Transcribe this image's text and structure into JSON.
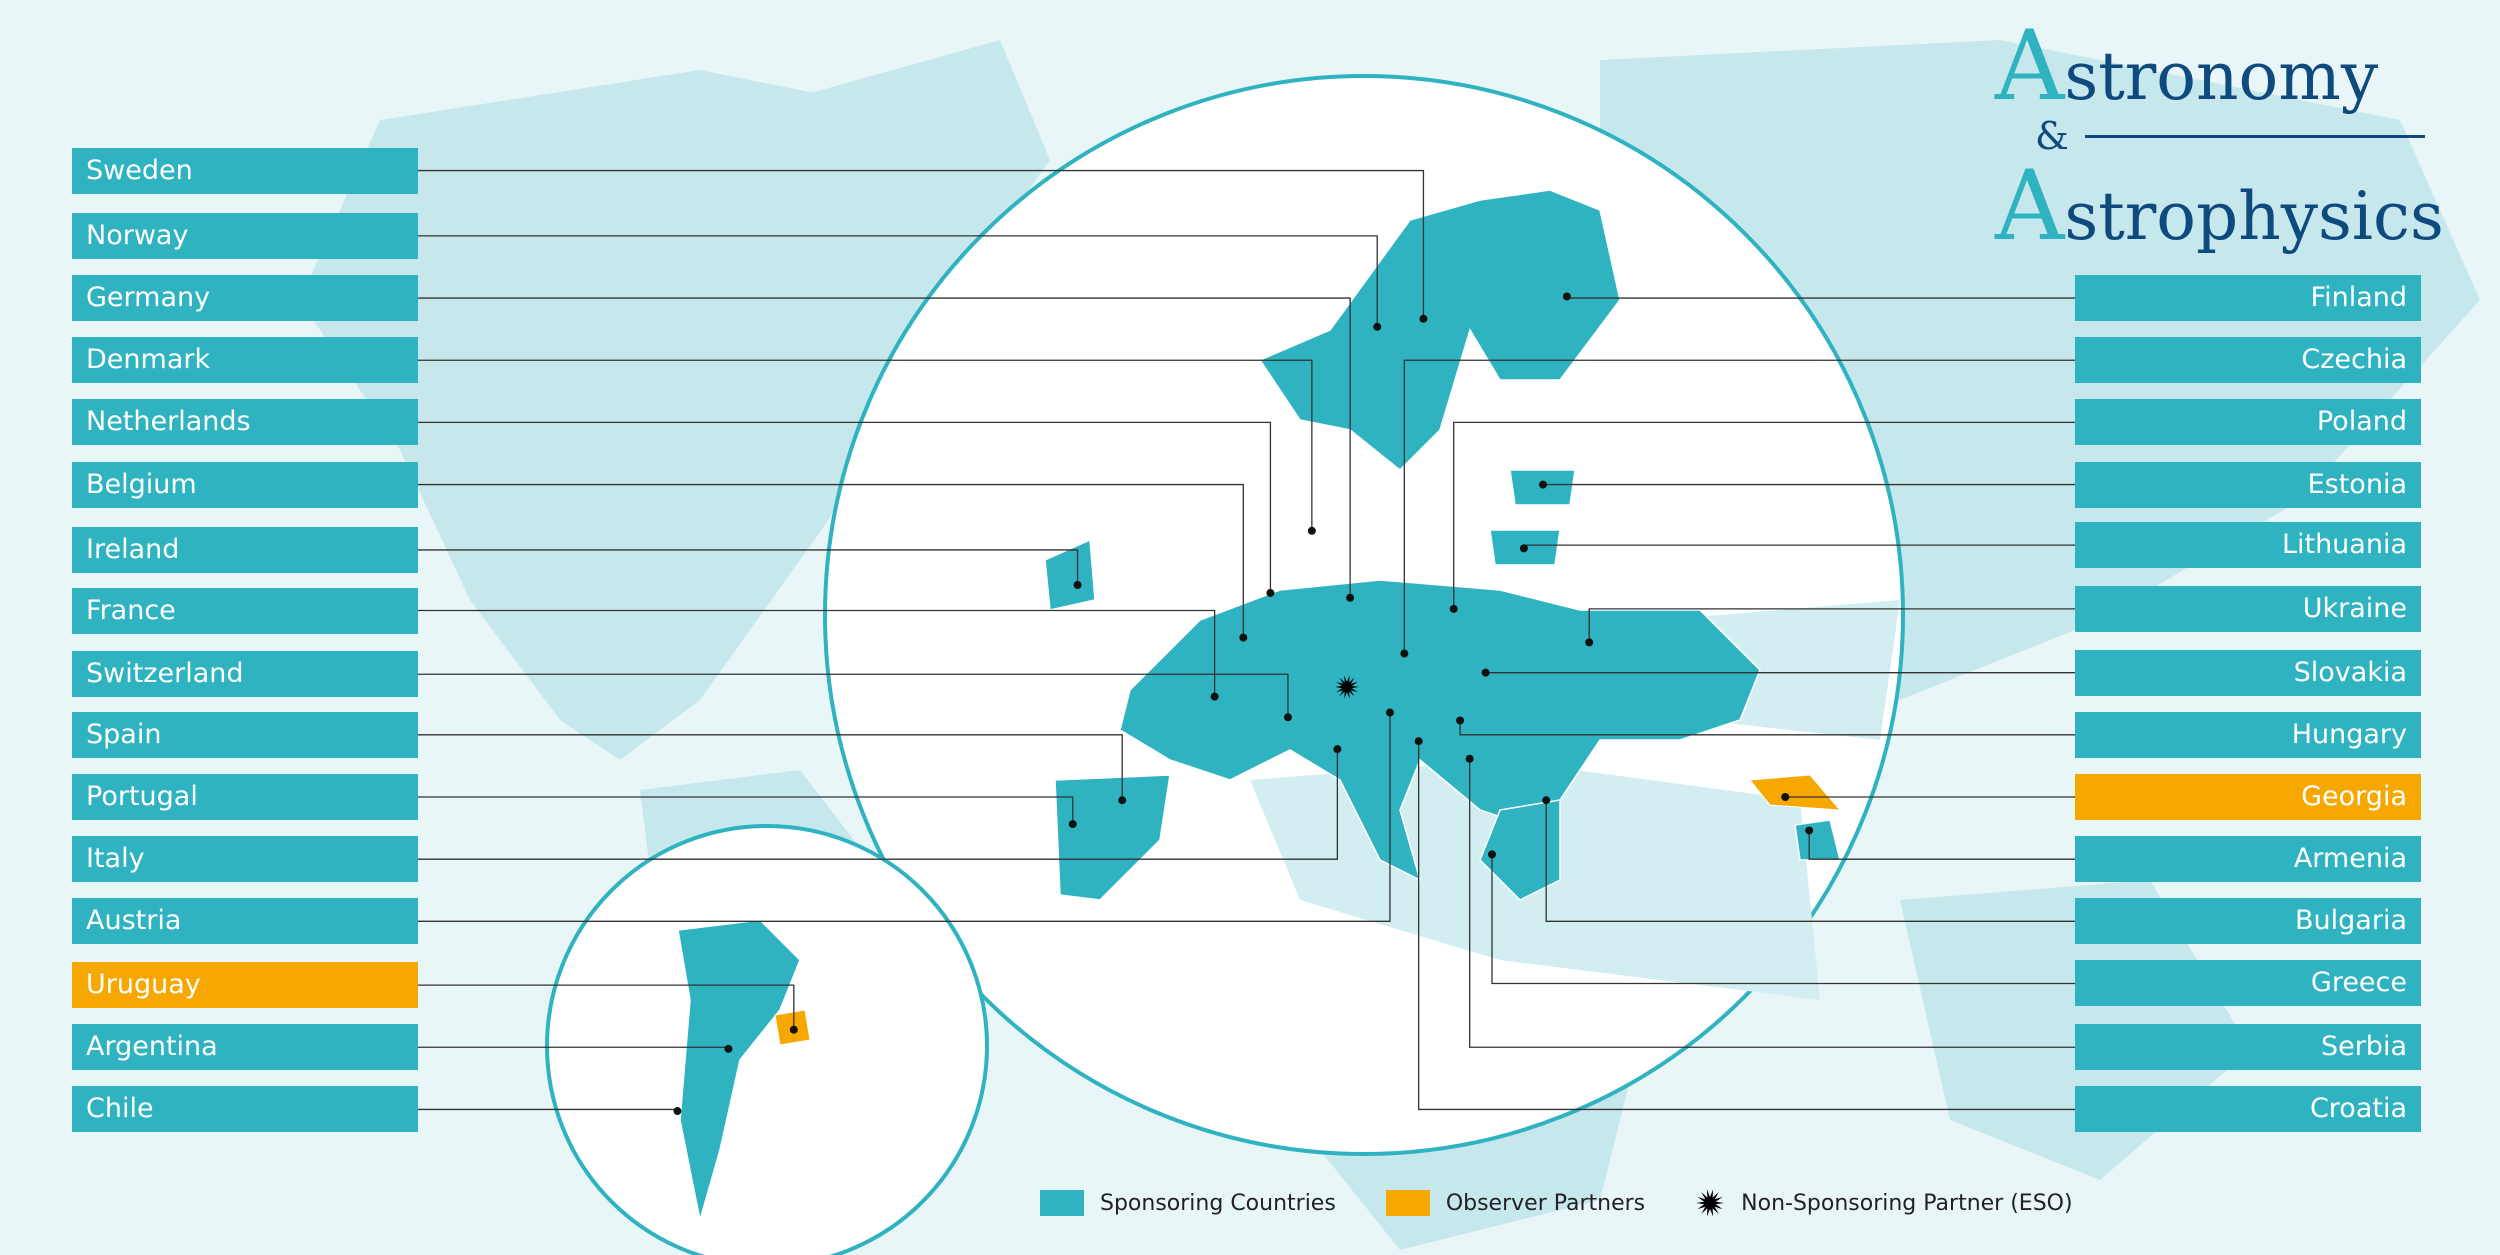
{
  "logo": {
    "line1": "Astronomy",
    "ampersand": "&",
    "line2": "Astrophysics"
  },
  "colors": {
    "sponsoring": "#2fb3c1",
    "observer": "#f6a800",
    "eso": "#000000",
    "background": "#e9f6f8",
    "land": "#c6e8ed"
  },
  "left_countries": [
    {
      "name": "Sweden",
      "type": "sponsoring"
    },
    {
      "name": "Norway",
      "type": "sponsoring"
    },
    {
      "name": "Germany",
      "type": "sponsoring"
    },
    {
      "name": "Denmark",
      "type": "sponsoring"
    },
    {
      "name": "Netherlands",
      "type": "sponsoring"
    },
    {
      "name": "Belgium",
      "type": "sponsoring"
    },
    {
      "name": "Ireland",
      "type": "sponsoring"
    },
    {
      "name": "France",
      "type": "sponsoring"
    },
    {
      "name": "Switzerland",
      "type": "sponsoring"
    },
    {
      "name": "Spain",
      "type": "sponsoring"
    },
    {
      "name": "Portugal",
      "type": "sponsoring"
    },
    {
      "name": "Italy",
      "type": "sponsoring"
    },
    {
      "name": "Austria",
      "type": "sponsoring"
    },
    {
      "name": "Uruguay",
      "type": "observer"
    },
    {
      "name": "Argentina",
      "type": "sponsoring"
    },
    {
      "name": "Chile",
      "type": "sponsoring"
    }
  ],
  "right_countries": [
    {
      "name": "Finland",
      "type": "sponsoring"
    },
    {
      "name": "Czechia",
      "type": "sponsoring"
    },
    {
      "name": "Poland",
      "type": "sponsoring"
    },
    {
      "name": "Estonia",
      "type": "sponsoring"
    },
    {
      "name": "Lithuania",
      "type": "sponsoring"
    },
    {
      "name": "Ukraine",
      "type": "sponsoring"
    },
    {
      "name": "Slovakia",
      "type": "sponsoring"
    },
    {
      "name": "Hungary",
      "type": "sponsoring"
    },
    {
      "name": "Georgia",
      "type": "observer"
    },
    {
      "name": "Armenia",
      "type": "sponsoring"
    },
    {
      "name": "Bulgaria",
      "type": "sponsoring"
    },
    {
      "name": "Greece",
      "type": "sponsoring"
    },
    {
      "name": "Serbia",
      "type": "sponsoring"
    },
    {
      "name": "Croatia",
      "type": "sponsoring"
    }
  ],
  "legend": [
    {
      "label": "Sponsoring Countries",
      "icon": "teal-square"
    },
    {
      "label": "Observer Partners",
      "icon": "orange-square"
    },
    {
      "label": "Non-Sponsoring Partner (ESO)",
      "icon": "starburst"
    }
  ]
}
